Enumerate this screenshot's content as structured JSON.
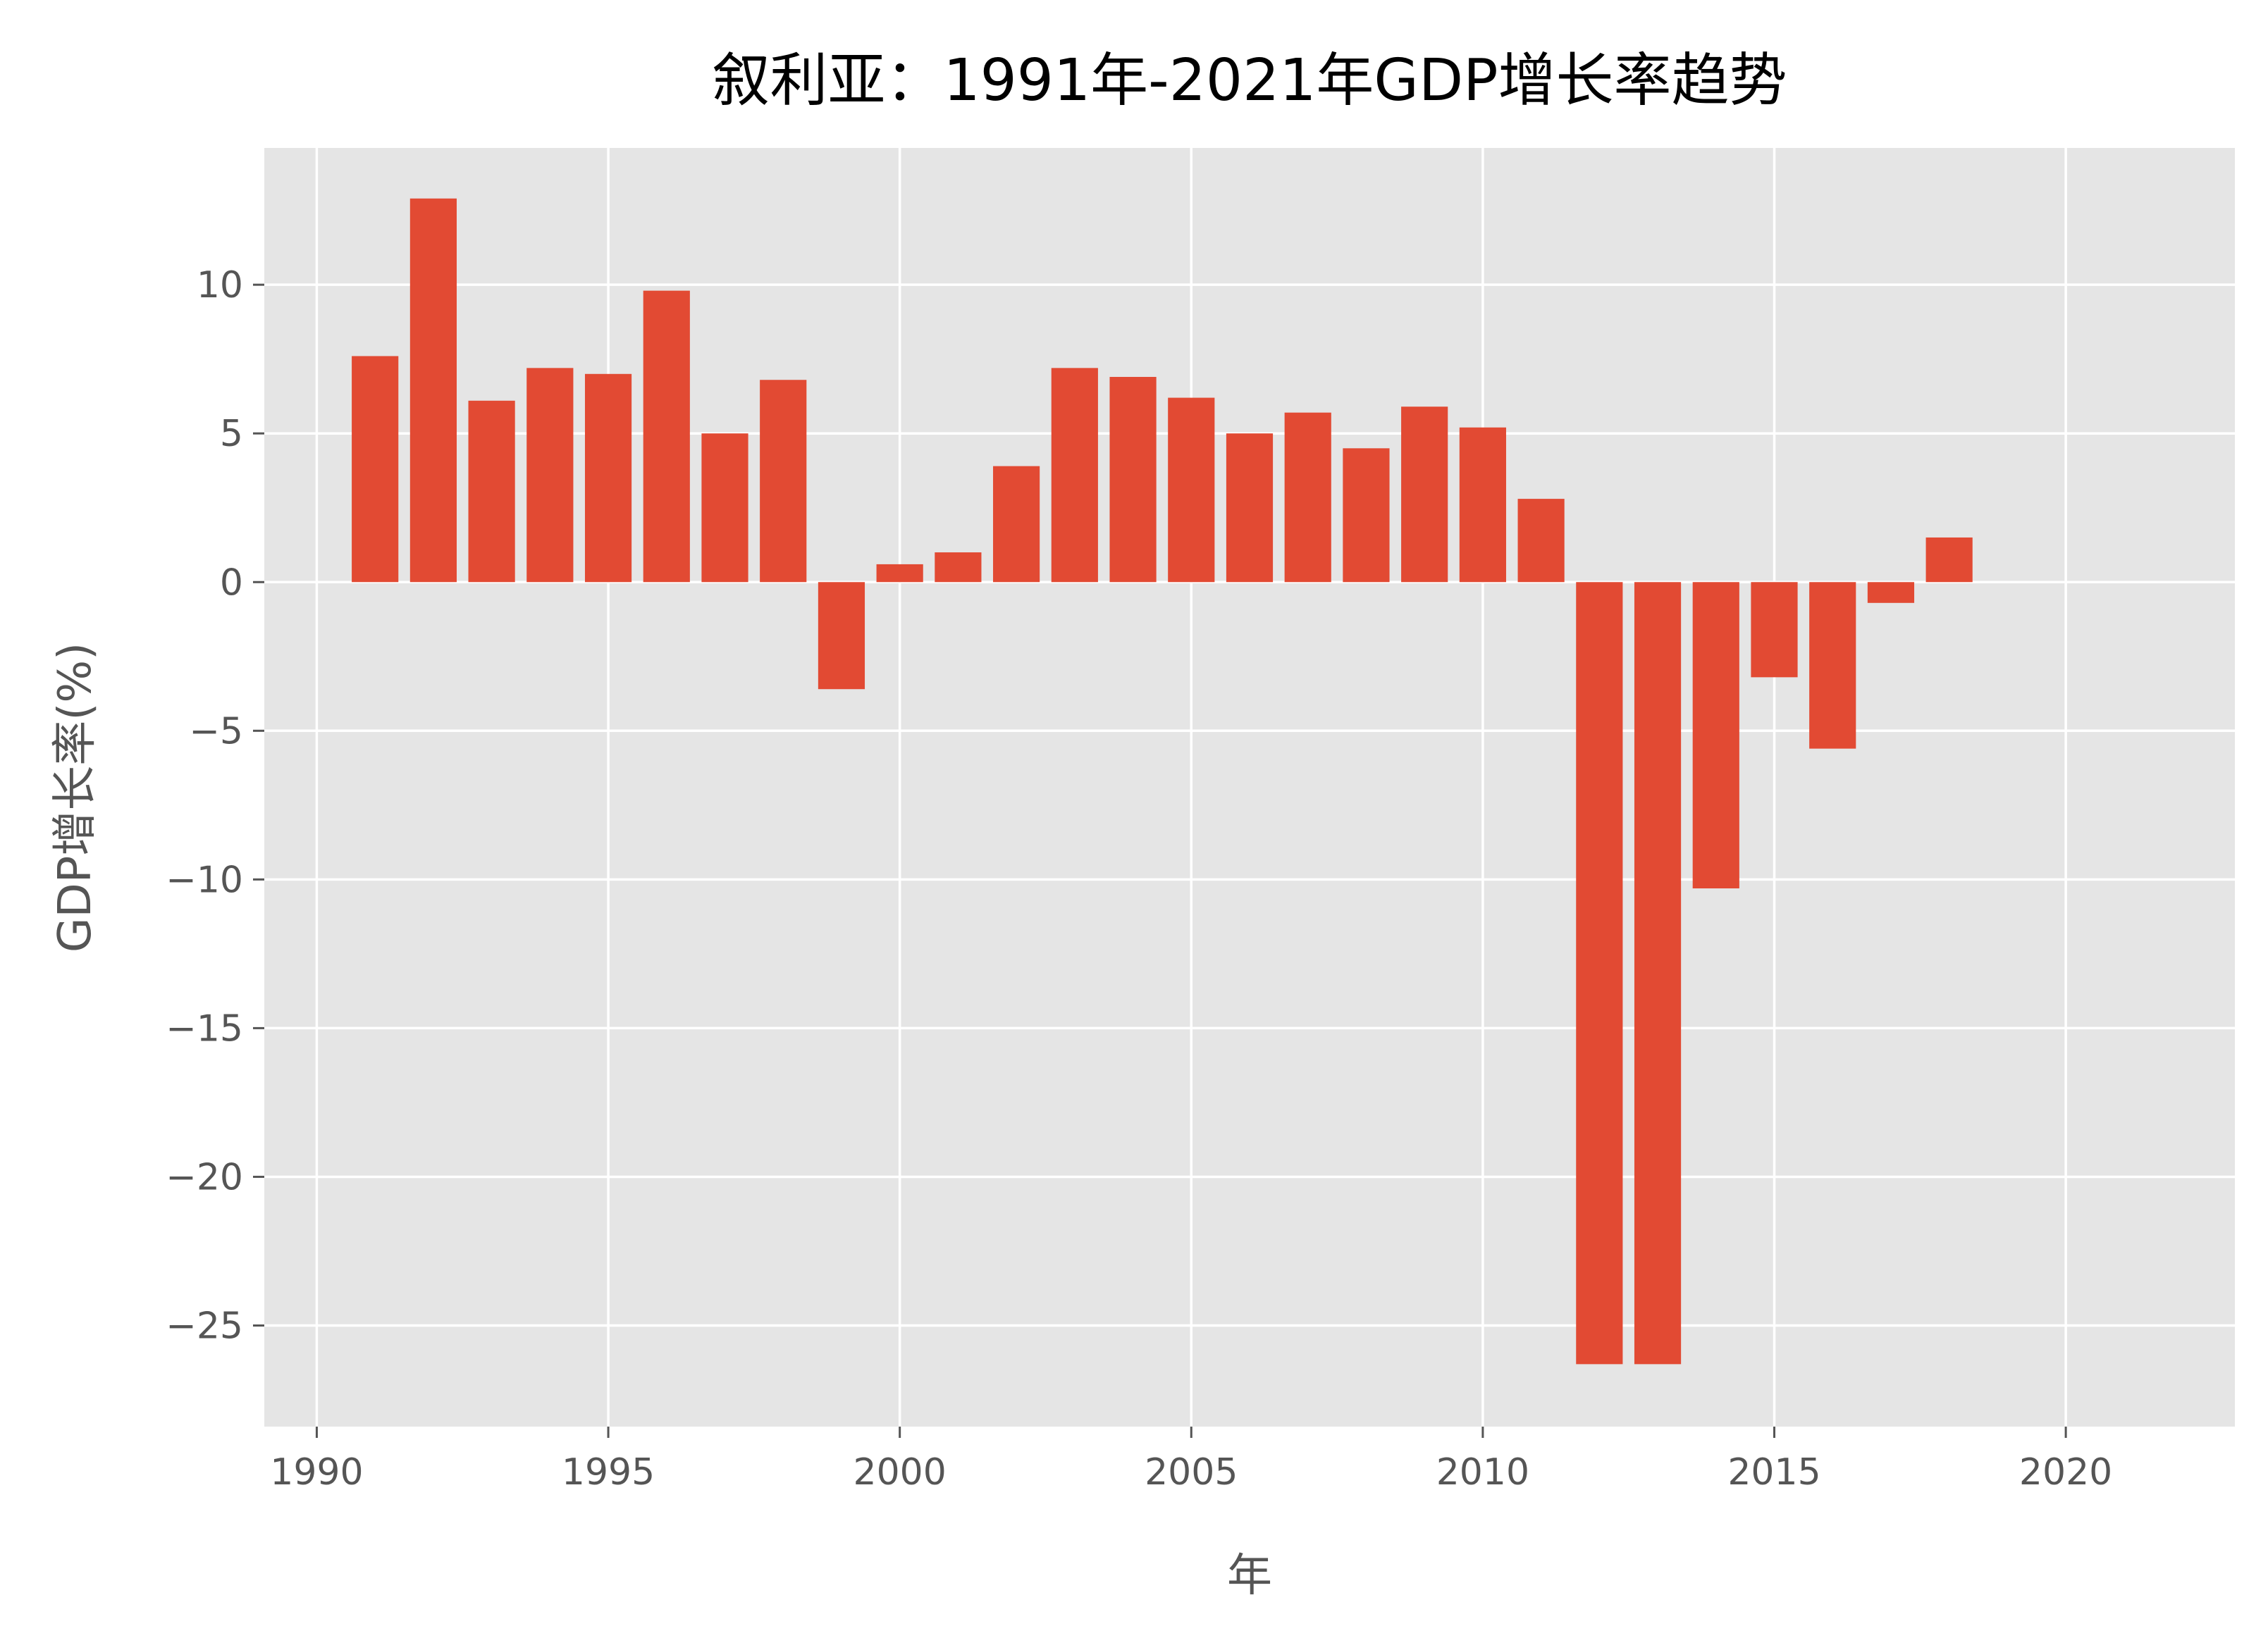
{
  "chart_data": {
    "type": "bar",
    "title": "叙利亚：1991年-2021年GDP增长率趋势",
    "xlabel": "年",
    "ylabel": "GDP增长率(%)",
    "x": [
      1991,
      1992,
      1993,
      1994,
      1995,
      1996,
      1997,
      1998,
      1999,
      2000,
      2001,
      2002,
      2003,
      2004,
      2005,
      2006,
      2007,
      2008,
      2009,
      2010,
      2011,
      2012,
      2013,
      2014,
      2015,
      2016,
      2017,
      2018
    ],
    "values": [
      7.6,
      12.9,
      6.1,
      7.2,
      7.0,
      9.8,
      5.0,
      6.8,
      -3.6,
      0.6,
      1.0,
      3.9,
      7.2,
      6.9,
      6.2,
      5.0,
      5.7,
      4.5,
      5.9,
      5.2,
      2.8,
      -26.3,
      -26.3,
      -10.3,
      -3.2,
      -5.6,
      -0.7,
      1.5
    ],
    "xlim": [
      1989.1,
      2022.9
    ],
    "ylim": [
      -28.4,
      14.6
    ],
    "xticks": [
      1990,
      1995,
      2000,
      2005,
      2010,
      2015,
      2020
    ],
    "xtick_labels": [
      "1990",
      "1995",
      "2000",
      "2005",
      "2010",
      "2015",
      "2020"
    ],
    "yticks": [
      10,
      5,
      0,
      -5,
      -10,
      -15,
      -20,
      -25
    ],
    "ytick_labels": [
      "10",
      "5",
      "0",
      "−5",
      "−10",
      "−15",
      "−20",
      "−25"
    ],
    "grid": true,
    "colors": {
      "bar": "#E24A33",
      "plot_background": "#E5E5E5",
      "grid": "#FFFFFF",
      "tick_text": "#555555",
      "title_text": "#000000"
    }
  }
}
